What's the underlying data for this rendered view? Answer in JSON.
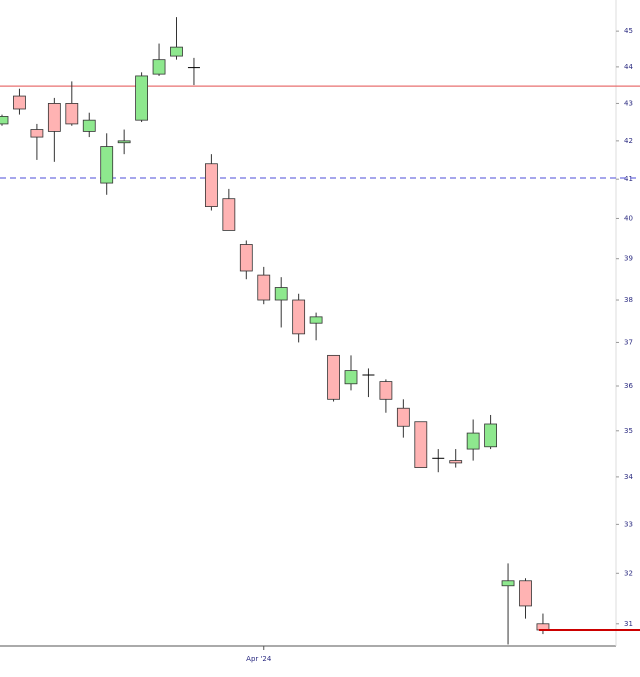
{
  "chart_data": {
    "type": "candlestick",
    "categories": [
      null,
      null,
      null,
      null,
      null,
      null,
      null,
      null,
      null,
      null,
      null,
      null,
      null,
      null,
      null,
      "Apr '24",
      null,
      null,
      null,
      null,
      null,
      null,
      null,
      null,
      null,
      null,
      null,
      null,
      null,
      null,
      null,
      null
    ],
    "open": [
      42.45,
      43.2,
      42.3,
      43.0,
      43.0,
      42.25,
      40.9,
      41.95,
      42.55,
      43.8,
      44.3,
      43.98,
      41.4,
      40.5,
      39.35,
      38.6,
      38.0,
      38.0,
      37.45,
      36.7,
      36.05,
      36.25,
      36.1,
      35.5,
      35.2,
      34.4,
      34.35,
      34.6,
      34.65,
      31.75,
      31.85,
      31.0
    ],
    "high": [
      42.7,
      43.4,
      42.45,
      43.15,
      43.6,
      42.75,
      42.2,
      42.3,
      43.85,
      44.65,
      45.4,
      44.25,
      41.65,
      40.75,
      39.45,
      38.8,
      38.55,
      38.15,
      37.7,
      36.7,
      36.7,
      36.4,
      36.15,
      35.7,
      35.2,
      34.6,
      34.6,
      35.25,
      35.35,
      32.2,
      31.9,
      31.2
    ],
    "low": [
      42.4,
      42.7,
      41.5,
      41.45,
      42.4,
      42.1,
      40.6,
      41.65,
      42.5,
      43.75,
      44.2,
      43.5,
      40.2,
      39.7,
      38.5,
      37.9,
      37.35,
      37.0,
      37.05,
      35.65,
      35.9,
      35.75,
      35.4,
      34.85,
      34.2,
      34.1,
      34.2,
      34.35,
      34.6,
      30.6,
      31.1,
      30.8
    ],
    "close": [
      42.65,
      42.85,
      42.1,
      42.25,
      42.45,
      42.55,
      41.85,
      42.0,
      43.75,
      44.2,
      44.55,
      43.98,
      40.3,
      39.7,
      38.7,
      38.0,
      38.3,
      37.2,
      37.6,
      35.7,
      36.35,
      36.25,
      35.7,
      35.1,
      34.2,
      34.4,
      34.3,
      34.95,
      35.15,
      31.85,
      31.35,
      30.88
    ],
    "up_color": "#8ee88e",
    "down_color": "#ffb3b3",
    "doji_color": "#000000",
    "log_scale": true,
    "ylim": [
      30.57,
      45.89
    ],
    "yticks": [
      31,
      32,
      33,
      34,
      35,
      36,
      37,
      38,
      39,
      40,
      41,
      42,
      43,
      44,
      45
    ],
    "lines": [
      {
        "value": 43.47,
        "color": "#e87070",
        "style": "solid"
      },
      {
        "value": 41.03,
        "color": "#7070e0",
        "style": "dashed"
      }
    ],
    "last_price_line": {
      "value": 30.88,
      "color": "#cc0000"
    }
  }
}
